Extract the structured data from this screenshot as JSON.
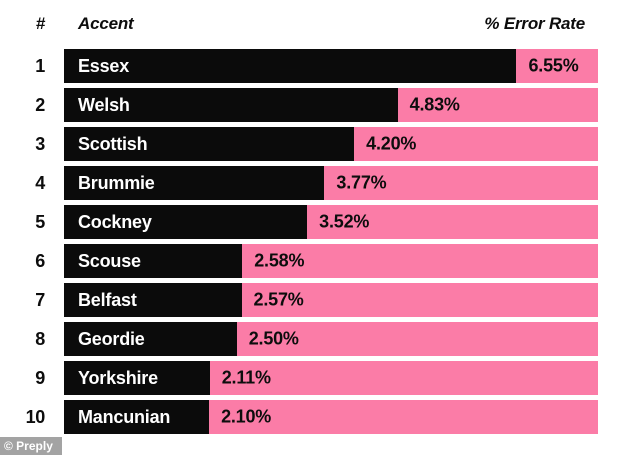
{
  "header": {
    "rank_label": "#",
    "accent_label": "Accent",
    "value_label": "% Error Rate"
  },
  "watermark": {
    "text": "© Preply"
  },
  "colors": {
    "bar_black": "#0b0b0b",
    "track_pink": "#fb7ca7",
    "background": "#ffffff",
    "bar_label_text": "#ffffff",
    "value_text": "#0d0d0d"
  },
  "chart_data": {
    "type": "bar",
    "orientation": "horizontal",
    "title": "",
    "xlabel": "% Error Rate",
    "ylabel": "Accent",
    "columns": {
      "rank": "#",
      "category": "Accent",
      "value": "% Error Rate"
    },
    "ranks": [
      1,
      2,
      3,
      4,
      5,
      6,
      7,
      8,
      9,
      10
    ],
    "categories": [
      "Essex",
      "Welsh",
      "Scottish",
      "Brummie",
      "Cockney",
      "Scouse",
      "Belfast",
      "Geordie",
      "Yorkshire",
      "Mancunian"
    ],
    "values": [
      6.55,
      4.83,
      4.2,
      3.77,
      3.52,
      2.58,
      2.57,
      2.5,
      2.11,
      2.1
    ],
    "value_labels": [
      "6.55%",
      "4.83%",
      "4.20%",
      "3.77%",
      "3.52%",
      "2.58%",
      "2.57%",
      "2.50%",
      "2.11%",
      "2.10%"
    ],
    "xlim": [
      0,
      7.73
    ],
    "grid": false,
    "legend": false
  }
}
